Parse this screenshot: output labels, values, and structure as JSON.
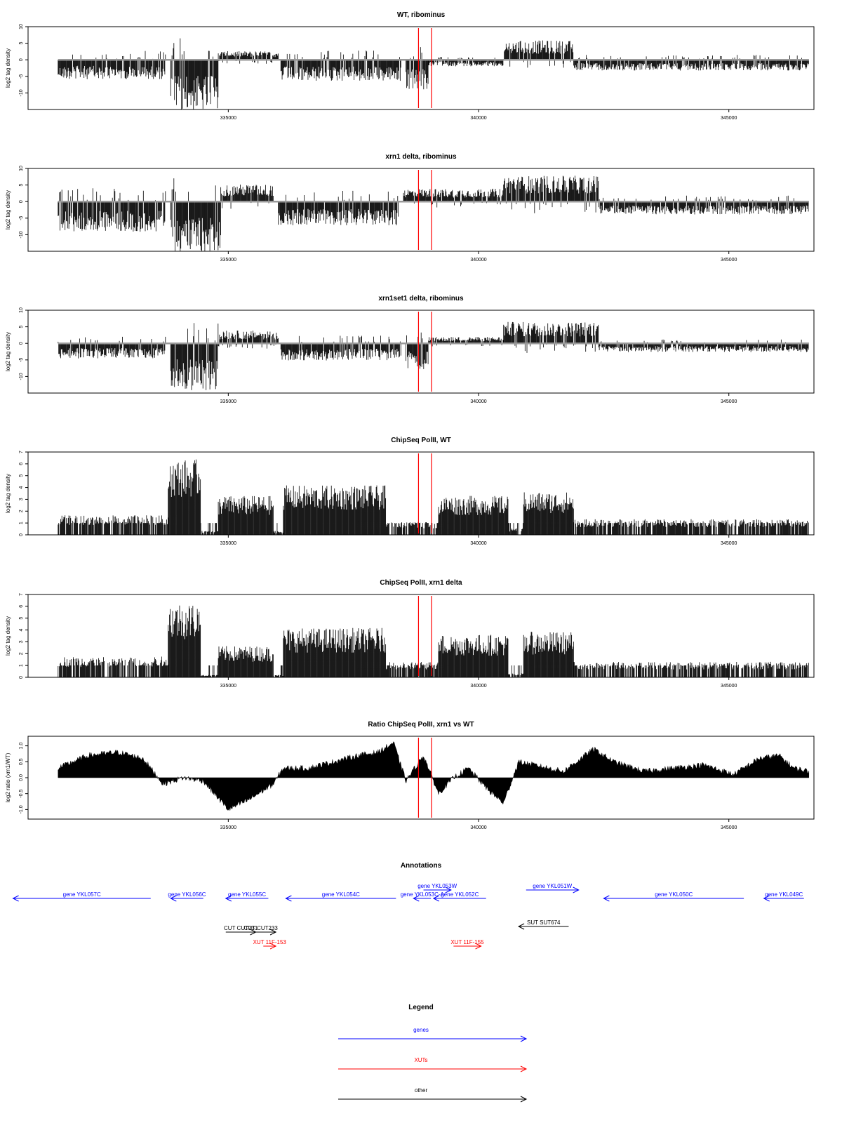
{
  "chart_data": [
    {
      "type": "bar",
      "id": "wt",
      "title": "WT, ribominus",
      "ylabel": "log2 tag density",
      "xlim": [
        331000,
        346700
      ],
      "ylim": [
        -15,
        10
      ],
      "yticks": [
        -10,
        -5,
        0,
        5,
        10
      ],
      "xticks": [
        335000,
        340000,
        345000
      ],
      "signed": true,
      "baseline": 0,
      "markers": [
        338800,
        339060
      ],
      "segments": [
        {
          "from": 331600,
          "to": 333750,
          "value": -4.5
        },
        {
          "from": 333850,
          "to": 334800,
          "value": -12
        },
        {
          "from": 334800,
          "to": 336000,
          "value": 2
        },
        {
          "from": 336050,
          "to": 338450,
          "value": -5
        },
        {
          "from": 338550,
          "to": 339000,
          "value": -7
        },
        {
          "from": 339000,
          "to": 340500,
          "value": -1.5
        },
        {
          "from": 340500,
          "to": 341900,
          "value": 4.5
        },
        {
          "from": 341900,
          "to": 346600,
          "value": -2.5
        }
      ]
    },
    {
      "type": "bar",
      "id": "xrn1",
      "title": "xrn1 delta, ribominus",
      "ylabel": "log2 tag density",
      "xlim": [
        331000,
        346700
      ],
      "ylim": [
        -15,
        10
      ],
      "yticks": [
        -10,
        -5,
        0,
        5,
        10
      ],
      "xticks": [
        335000,
        340000,
        345000
      ],
      "signed": true,
      "baseline": 0,
      "markers": [
        338800,
        339060
      ],
      "segments": [
        {
          "from": 331600,
          "to": 333750,
          "value": -7
        },
        {
          "from": 333850,
          "to": 334850,
          "value": -12
        },
        {
          "from": 334850,
          "to": 335900,
          "value": 4
        },
        {
          "from": 336000,
          "to": 338400,
          "value": -5.5
        },
        {
          "from": 338500,
          "to": 339200,
          "value": 3
        },
        {
          "from": 339200,
          "to": 340500,
          "value": 3
        },
        {
          "from": 340500,
          "to": 342400,
          "value": 6
        },
        {
          "from": 342400,
          "to": 346600,
          "value": -3
        }
      ]
    },
    {
      "type": "bar",
      "id": "xrn1set1",
      "title": "xrn1set1 delta, ribominus",
      "ylabel": "log2 tag density",
      "xlim": [
        331000,
        346700
      ],
      "ylim": [
        -15,
        10
      ],
      "yticks": [
        -10,
        -5,
        0,
        5,
        10
      ],
      "xticks": [
        335000,
        340000,
        345000
      ],
      "signed": true,
      "baseline": 0,
      "markers": [
        338800,
        339060
      ],
      "segments": [
        {
          "from": 331600,
          "to": 333750,
          "value": -3.5
        },
        {
          "from": 333850,
          "to": 334800,
          "value": -11
        },
        {
          "from": 334800,
          "to": 336000,
          "value": 3
        },
        {
          "from": 336050,
          "to": 338450,
          "value": -4
        },
        {
          "from": 338550,
          "to": 339000,
          "value": -6
        },
        {
          "from": 339000,
          "to": 340500,
          "value": 1.5
        },
        {
          "from": 340500,
          "to": 342400,
          "value": 5
        },
        {
          "from": 342400,
          "to": 346600,
          "value": -2
        }
      ]
    },
    {
      "type": "bar",
      "id": "chip_wt",
      "title": "ChipSeq PolII, WT",
      "ylabel": "log2 tag density",
      "xlim": [
        331000,
        346700
      ],
      "ylim": [
        0,
        7
      ],
      "yticks": [
        0,
        1,
        2,
        3,
        4,
        5,
        6,
        7
      ],
      "xticks": [
        335000,
        340000,
        345000
      ],
      "signed": false,
      "baseline": 0,
      "markers": [
        338800,
        339060
      ],
      "segments": [
        {
          "from": 331600,
          "to": 333800,
          "value": 1.5
        },
        {
          "from": 333800,
          "to": 334450,
          "value": 5.8
        },
        {
          "from": 334450,
          "to": 334800,
          "value": 0.3
        },
        {
          "from": 334800,
          "to": 335900,
          "value": 3
        },
        {
          "from": 335900,
          "to": 336100,
          "value": 0.3
        },
        {
          "from": 336100,
          "to": 338150,
          "value": 3.8
        },
        {
          "from": 338150,
          "to": 339200,
          "value": 1
        },
        {
          "from": 339200,
          "to": 340600,
          "value": 3
        },
        {
          "from": 340600,
          "to": 340900,
          "value": 0.5
        },
        {
          "from": 340900,
          "to": 341900,
          "value": 3.3
        },
        {
          "from": 341900,
          "to": 346600,
          "value": 1.2
        }
      ]
    },
    {
      "type": "bar",
      "id": "chip_xrn1",
      "title": "ChipSeq PolII, xrn1 delta",
      "ylabel": "log2 tag density",
      "xlim": [
        331000,
        346700
      ],
      "ylim": [
        0,
        7
      ],
      "yticks": [
        0,
        1,
        2,
        3,
        4,
        5,
        6,
        7
      ],
      "xticks": [
        335000,
        340000,
        345000
      ],
      "signed": false,
      "baseline": 0,
      "markers": [
        338800,
        339060
      ],
      "segments": [
        {
          "from": 331600,
          "to": 333800,
          "value": 1.6
        },
        {
          "from": 333800,
          "to": 334450,
          "value": 5.8
        },
        {
          "from": 334450,
          "to": 334800,
          "value": 0.2
        },
        {
          "from": 334800,
          "to": 335900,
          "value": 2.4
        },
        {
          "from": 335900,
          "to": 336100,
          "value": 0.2
        },
        {
          "from": 336100,
          "to": 338150,
          "value": 3.8
        },
        {
          "from": 338150,
          "to": 339200,
          "value": 1.2
        },
        {
          "from": 339200,
          "to": 340600,
          "value": 3.3
        },
        {
          "from": 340600,
          "to": 340900,
          "value": 0.3
        },
        {
          "from": 340900,
          "to": 341900,
          "value": 3.5
        },
        {
          "from": 341900,
          "to": 346600,
          "value": 1.2
        }
      ]
    },
    {
      "type": "area",
      "id": "ratio",
      "title": "Ratio ChipSeq PolII, xrn1 vs WT",
      "ylabel": "log2 ratio (xrn1/WT)",
      "xlim": [
        331000,
        346700
      ],
      "ylim": [
        -1.3,
        1.3
      ],
      "yticks": [
        -1.0,
        -0.5,
        0.0,
        0.5,
        1.0
      ],
      "xticks": [
        335000,
        340000,
        345000
      ],
      "markers": [
        338800,
        339060
      ],
      "x": [
        331600,
        332200,
        332800,
        333300,
        333700,
        334100,
        334500,
        335000,
        335400,
        335900,
        336100,
        336600,
        337100,
        337600,
        338000,
        338300,
        338550,
        338900,
        339200,
        339500,
        339800,
        340200,
        340500,
        340800,
        341100,
        341700,
        342300,
        342700,
        343300,
        343900,
        344500,
        345100,
        345600,
        346000,
        346300,
        346600
      ],
      "values": [
        0.3,
        0.7,
        0.8,
        0.6,
        -0.2,
        0.0,
        -0.1,
        -1.0,
        -0.7,
        -0.2,
        0.3,
        0.3,
        0.5,
        0.7,
        0.8,
        1.1,
        -0.1,
        0.7,
        -0.5,
        0.0,
        0.3,
        -0.4,
        -0.8,
        0.5,
        0.4,
        0.2,
        0.9,
        0.5,
        0.2,
        0.3,
        0.4,
        0.1,
        0.6,
        0.7,
        0.3,
        0.2
      ]
    },
    {
      "type": "annotation",
      "id": "annotations",
      "title": "Annotations",
      "xlim": [
        331000,
        346700
      ],
      "features": [
        {
          "label": "gene YKL057C",
          "from": 330700,
          "to": 333450,
          "strand": "-",
          "kind": "gene",
          "row": 1
        },
        {
          "label": "gene YKL056C",
          "from": 333850,
          "to": 334500,
          "strand": "-",
          "kind": "gene",
          "row": 1
        },
        {
          "label": "gene YKL055C",
          "from": 334950,
          "to": 335800,
          "strand": "-",
          "kind": "gene",
          "row": 1
        },
        {
          "label": "gene YKL054C",
          "from": 336150,
          "to": 338350,
          "strand": "-",
          "kind": "gene",
          "row": 1
        },
        {
          "label": "gene YKL053C-A",
          "from": 338700,
          "to": 339050,
          "strand": "-",
          "kind": "gene",
          "row": 1
        },
        {
          "label": "gene YKL053W",
          "from": 338900,
          "to": 339450,
          "strand": "+",
          "kind": "gene",
          "row": 0
        },
        {
          "label": "gene YKL052C",
          "from": 339100,
          "to": 340150,
          "strand": "-",
          "kind": "gene",
          "row": 1
        },
        {
          "label": "gene YKL051W",
          "from": 340950,
          "to": 342000,
          "strand": "+",
          "kind": "gene",
          "row": 0
        },
        {
          "label": "gene YKL050C",
          "from": 342500,
          "to": 345300,
          "strand": "-",
          "kind": "gene",
          "row": 1
        },
        {
          "label": "gene YKL049C",
          "from": 345700,
          "to": 346500,
          "strand": "-",
          "kind": "gene",
          "row": 1
        },
        {
          "label": "CUT CUT231",
          "from": 334950,
          "to": 335550,
          "strand": "+",
          "kind": "other",
          "row": 4
        },
        {
          "label": "CUT CUT233",
          "from": 335350,
          "to": 335950,
          "strand": "+",
          "kind": "other",
          "row": 4
        },
        {
          "label": "SUT SUT674",
          "from": 340800,
          "to": 341800,
          "strand": "-",
          "kind": "other",
          "row": 3
        },
        {
          "label": "XUT 11F-153",
          "from": 335700,
          "to": 335950,
          "strand": "+",
          "kind": "xut",
          "row": 5
        },
        {
          "label": "XUT 11F-155",
          "from": 339500,
          "to": 340050,
          "strand": "+",
          "kind": "xut",
          "row": 5
        }
      ]
    },
    {
      "type": "legend",
      "id": "legend",
      "title": "Legend",
      "entries": [
        {
          "label": "genes",
          "color": "#0000ff"
        },
        {
          "label": "XUTs",
          "color": "#ff0000"
        },
        {
          "label": "other",
          "color": "#000000"
        }
      ]
    }
  ],
  "colors": {
    "gene": "#0000ff",
    "xut": "#ff0000",
    "other": "#000000",
    "marker": "#ff0000",
    "baseline": "#999999",
    "data": "#000000"
  }
}
